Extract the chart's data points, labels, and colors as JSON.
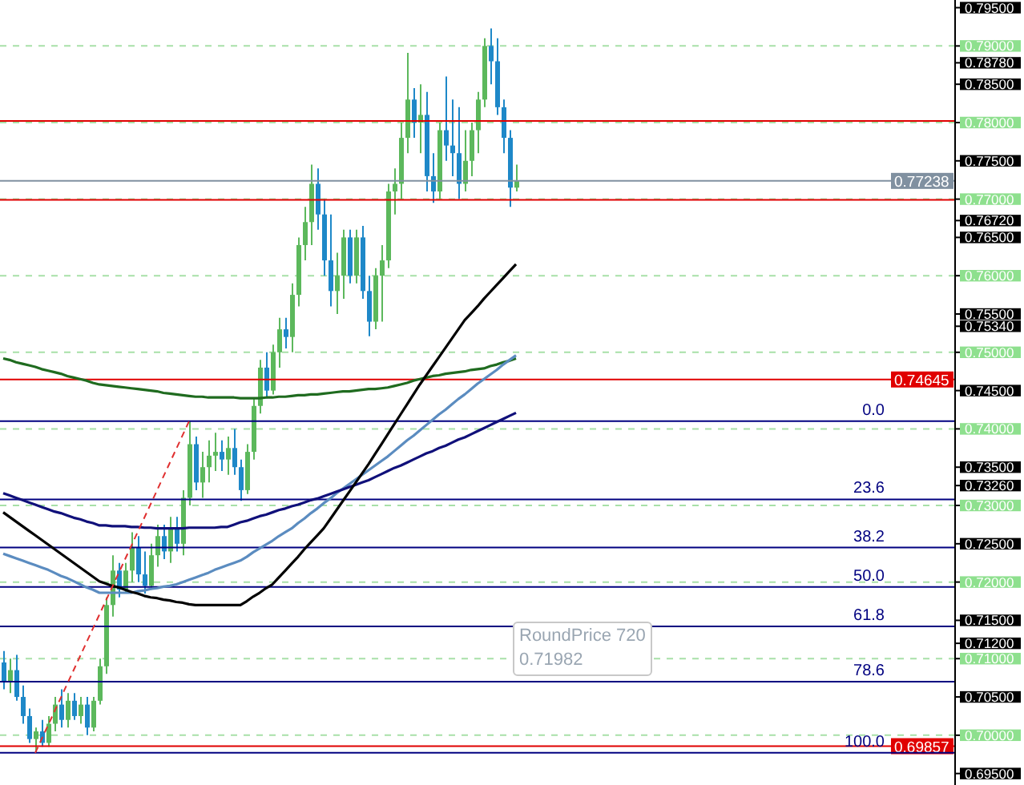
{
  "chart_data": {
    "type": "candlestick",
    "categories": [
      null,
      null,
      null,
      null,
      null,
      null,
      null,
      null,
      null,
      null,
      null,
      null,
      null,
      null,
      null,
      null,
      null,
      null,
      null,
      null,
      null,
      null,
      null,
      null,
      null,
      null,
      null,
      null,
      null,
      null,
      null,
      null,
      null,
      null,
      null,
      null,
      null,
      null,
      null,
      null,
      null,
      null,
      null,
      null,
      null,
      null,
      null,
      null,
      null,
      null,
      null,
      null,
      null,
      null,
      null,
      null,
      null,
      null,
      null,
      null,
      null,
      null,
      null,
      null,
      null,
      null,
      null,
      null,
      null,
      null,
      null,
      null,
      null,
      null,
      null,
      null,
      null,
      null,
      null,
      null,
      null
    ],
    "ohlc": [
      [
        0.7095,
        0.711,
        0.706,
        0.707
      ],
      [
        0.707,
        0.71,
        0.7055,
        0.7085
      ],
      [
        0.7085,
        0.7105,
        0.7045,
        0.705
      ],
      [
        0.705,
        0.7065,
        0.7015,
        0.7025
      ],
      [
        0.7025,
        0.7035,
        0.699,
        0.6995
      ],
      [
        0.6995,
        0.701,
        0.6977,
        0.7005
      ],
      [
        0.7005,
        0.702,
        0.6985,
        0.699
      ],
      [
        0.699,
        0.7025,
        0.6985,
        0.7015
      ],
      [
        0.7015,
        0.705,
        0.7005,
        0.704
      ],
      [
        0.704,
        0.706,
        0.701,
        0.702
      ],
      [
        0.702,
        0.7055,
        0.701,
        0.7045
      ],
      [
        0.7045,
        0.7055,
        0.702,
        0.7025
      ],
      [
        0.7025,
        0.705,
        0.7015,
        0.704
      ],
      [
        0.704,
        0.705,
        0.7,
        0.701
      ],
      [
        0.701,
        0.705,
        0.7005,
        0.7045
      ],
      [
        0.7045,
        0.71,
        0.704,
        0.709
      ],
      [
        0.709,
        0.718,
        0.708,
        0.717
      ],
      [
        0.717,
        0.7235,
        0.7155,
        0.7215
      ],
      [
        0.7215,
        0.7225,
        0.718,
        0.719
      ],
      [
        0.719,
        0.7225,
        0.7185,
        0.7215
      ],
      [
        0.7215,
        0.7265,
        0.72,
        0.7245
      ],
      [
        0.7245,
        0.726,
        0.72,
        0.721
      ],
      [
        0.721,
        0.724,
        0.7185,
        0.7195
      ],
      [
        0.7195,
        0.725,
        0.719,
        0.7235
      ],
      [
        0.7235,
        0.7275,
        0.722,
        0.726
      ],
      [
        0.726,
        0.7275,
        0.723,
        0.724
      ],
      [
        0.724,
        0.7285,
        0.7225,
        0.727
      ],
      [
        0.727,
        0.7285,
        0.724,
        0.725
      ],
      [
        0.725,
        0.732,
        0.7235,
        0.731
      ],
      [
        0.731,
        0.741,
        0.73,
        0.738
      ],
      [
        0.738,
        0.739,
        0.732,
        0.733
      ],
      [
        0.733,
        0.737,
        0.731,
        0.735
      ],
      [
        0.735,
        0.7385,
        0.733,
        0.7365
      ],
      [
        0.7365,
        0.7395,
        0.7345,
        0.737
      ],
      [
        0.737,
        0.7385,
        0.7345,
        0.736
      ],
      [
        0.736,
        0.739,
        0.734,
        0.7375
      ],
      [
        0.7375,
        0.74,
        0.734,
        0.735
      ],
      [
        0.735,
        0.736,
        0.7306,
        0.732
      ],
      [
        0.732,
        0.738,
        0.7315,
        0.737
      ],
      [
        0.737,
        0.744,
        0.736,
        0.743
      ],
      [
        0.743,
        0.749,
        0.742,
        0.748
      ],
      [
        0.748,
        0.75,
        0.744,
        0.745
      ],
      [
        0.745,
        0.751,
        0.7445,
        0.75
      ],
      [
        0.75,
        0.7545,
        0.748,
        0.753
      ],
      [
        0.753,
        0.7545,
        0.7505,
        0.752
      ],
      [
        0.752,
        0.759,
        0.75,
        0.7575
      ],
      [
        0.7575,
        0.765,
        0.756,
        0.764
      ],
      [
        0.764,
        0.769,
        0.762,
        0.767
      ],
      [
        0.767,
        0.7745,
        0.764,
        0.772
      ],
      [
        0.772,
        0.774,
        0.766,
        0.768
      ],
      [
        0.768,
        0.77,
        0.76,
        0.762
      ],
      [
        0.762,
        0.768,
        0.756,
        0.758
      ],
      [
        0.758,
        0.763,
        0.755,
        0.76
      ],
      [
        0.76,
        0.766,
        0.757,
        0.765
      ],
      [
        0.765,
        0.766,
        0.759,
        0.76
      ],
      [
        0.76,
        0.766,
        0.759,
        0.765
      ],
      [
        0.765,
        0.7665,
        0.757,
        0.758
      ],
      [
        0.758,
        0.76,
        0.7521,
        0.754
      ],
      [
        0.754,
        0.761,
        0.753,
        0.76
      ],
      [
        0.76,
        0.764,
        0.754,
        0.762
      ],
      [
        0.762,
        0.772,
        0.761,
        0.771
      ],
      [
        0.771,
        0.774,
        0.768,
        0.772
      ],
      [
        0.772,
        0.78,
        0.77,
        0.778
      ],
      [
        0.778,
        0.7891,
        0.776,
        0.783
      ],
      [
        0.783,
        0.7845,
        0.778,
        0.78
      ],
      [
        0.78,
        0.785,
        0.776,
        0.781
      ],
      [
        0.781,
        0.784,
        0.771,
        0.773
      ],
      [
        0.773,
        0.776,
        0.7695,
        0.771
      ],
      [
        0.771,
        0.78,
        0.77,
        0.779
      ],
      [
        0.779,
        0.786,
        0.775,
        0.777
      ],
      [
        0.777,
        0.783,
        0.773,
        0.776
      ],
      [
        0.776,
        0.782,
        0.77,
        0.772
      ],
      [
        0.772,
        0.779,
        0.771,
        0.775
      ],
      [
        0.775,
        0.78,
        0.773,
        0.779
      ],
      [
        0.779,
        0.784,
        0.776,
        0.783
      ],
      [
        0.783,
        0.791,
        0.782,
        0.79
      ],
      [
        0.79,
        0.7923,
        0.785,
        0.788
      ],
      [
        0.788,
        0.791,
        0.781,
        0.782
      ],
      [
        0.782,
        0.783,
        0.776,
        0.778
      ],
      [
        0.778,
        0.779,
        0.769,
        0.7715
      ],
      [
        0.7715,
        0.7745,
        0.771,
        0.7724
      ]
    ],
    "colors": [
      "#1e88c8",
      "#5cb85c",
      "#1e88c8",
      "#1e88c8",
      "#1e88c8",
      "#5cb85c",
      "#1e88c8",
      "#5cb85c",
      "#5cb85c",
      "#1e88c8",
      "#5cb85c",
      "#1e88c8",
      "#5cb85c",
      "#1e88c8",
      "#5cb85c",
      "#5cb85c",
      "#5cb85c",
      "#5cb85c",
      "#1e88c8",
      "#5cb85c",
      "#5cb85c",
      "#1e88c8",
      "#1e88c8",
      "#5cb85c",
      "#5cb85c",
      "#1e88c8",
      "#5cb85c",
      "#1e88c8",
      "#5cb85c",
      "#5cb85c",
      "#1e88c8",
      "#5cb85c",
      "#5cb85c",
      "#5cb85c",
      "#1e88c8",
      "#5cb85c",
      "#1e88c8",
      "#1e88c8",
      "#5cb85c",
      "#5cb85c",
      "#5cb85c",
      "#1e88c8",
      "#5cb85c",
      "#5cb85c",
      "#1e88c8",
      "#5cb85c",
      "#5cb85c",
      "#5cb85c",
      "#5cb85c",
      "#1e88c8",
      "#1e88c8",
      "#1e88c8",
      "#5cb85c",
      "#5cb85c",
      "#1e88c8",
      "#5cb85c",
      "#1e88c8",
      "#1e88c8",
      "#5cb85c",
      "#5cb85c",
      "#5cb85c",
      "#5cb85c",
      "#5cb85c",
      "#5cb85c",
      "#1e88c8",
      "#5cb85c",
      "#1e88c8",
      "#1e88c8",
      "#5cb85c",
      "#1e88c8",
      "#1e88c8",
      "#1e88c8",
      "#5cb85c",
      "#5cb85c",
      "#5cb85c",
      "#5cb85c",
      "#1e88c8",
      "#1e88c8",
      "#1e88c8",
      "#1e88c8",
      "#5cb85c"
    ],
    "series": [
      {
        "type": "line",
        "color": "#1f6b1f",
        "values": [
          0.7492,
          0.749,
          0.7487,
          0.7485,
          0.7483,
          0.7481,
          0.7478,
          0.7476,
          0.7474,
          0.7472,
          0.7469,
          0.7467,
          0.7465,
          0.7463,
          0.746,
          0.7458,
          0.7457,
          0.7456,
          0.7455,
          0.7454,
          0.7453,
          0.7452,
          0.7451,
          0.745,
          0.7449,
          0.7447,
          0.7446,
          0.7445,
          0.7444,
          0.7443,
          0.7442,
          0.7442,
          0.7441,
          0.7441,
          0.7441,
          0.7441,
          0.7441,
          0.744,
          0.744,
          0.744,
          0.744,
          0.7441,
          0.7441,
          0.7442,
          0.7442,
          0.7443,
          0.7444,
          0.7444,
          0.7445,
          0.7445,
          0.7446,
          0.7447,
          0.7448,
          0.7449,
          0.7449,
          0.745,
          0.7451,
          0.7452,
          0.7452,
          0.7453,
          0.7454,
          0.7456,
          0.7458,
          0.746,
          0.7463,
          0.7465,
          0.7467,
          0.7469,
          0.747,
          0.7472,
          0.7473,
          0.7474,
          0.7475,
          0.7477,
          0.7478,
          0.7479,
          0.7482,
          0.7484,
          0.7487,
          0.7489,
          0.7492
        ]
      },
      {
        "type": "line",
        "color": "#5b8cc0",
        "values": [
          0.7237,
          0.7234,
          0.7231,
          0.7228,
          0.7225,
          0.7222,
          0.7219,
          0.7216,
          0.7212,
          0.7208,
          0.7205,
          0.7201,
          0.7197,
          0.7193,
          0.719,
          0.7186,
          0.7186,
          0.7186,
          0.7186,
          0.7186,
          0.7186,
          0.7188,
          0.7189,
          0.7191,
          0.7192,
          0.7194,
          0.7195,
          0.7197,
          0.72,
          0.7203,
          0.7206,
          0.7209,
          0.7212,
          0.7216,
          0.7219,
          0.7222,
          0.7225,
          0.7228,
          0.7233,
          0.7239,
          0.7244,
          0.7249,
          0.7254,
          0.726,
          0.7265,
          0.727,
          0.7277,
          0.7283,
          0.729,
          0.7296,
          0.7303,
          0.7309,
          0.7316,
          0.7322,
          0.7328,
          0.7334,
          0.734,
          0.7346,
          0.7352,
          0.7358,
          0.7364,
          0.7371,
          0.7378,
          0.7385,
          0.7391,
          0.7398,
          0.7405,
          0.7412,
          0.7419,
          0.7425,
          0.7432,
          0.7439,
          0.7445,
          0.7452,
          0.7459,
          0.7465,
          0.7471,
          0.7477,
          0.7484,
          0.749,
          0.7496
        ]
      },
      {
        "type": "line",
        "color": "#10107a",
        "values": [
          0.7316,
          0.7313,
          0.731,
          0.7307,
          0.7304,
          0.7301,
          0.7298,
          0.7295,
          0.7292,
          0.729,
          0.7287,
          0.7284,
          0.7282,
          0.7279,
          0.7277,
          0.7274,
          0.7274,
          0.7273,
          0.7273,
          0.7273,
          0.7272,
          0.7272,
          0.7271,
          0.7271,
          0.727,
          0.727,
          0.727,
          0.727,
          0.727,
          0.7271,
          0.7271,
          0.7271,
          0.7271,
          0.7271,
          0.7272,
          0.7272,
          0.7275,
          0.7278,
          0.728,
          0.7283,
          0.7286,
          0.7288,
          0.7291,
          0.7294,
          0.7296,
          0.7299,
          0.7301,
          0.7304,
          0.7307,
          0.7309,
          0.7312,
          0.7315,
          0.7318,
          0.7321,
          0.7324,
          0.7327,
          0.733,
          0.7333,
          0.7337,
          0.7341,
          0.7345,
          0.7349,
          0.7352,
          0.7356,
          0.736,
          0.7364,
          0.7368,
          0.7371,
          0.7375,
          0.7378,
          0.7382,
          0.7386,
          0.7389,
          0.7393,
          0.7397,
          0.7401,
          0.7405,
          0.7409,
          0.7413,
          0.7417,
          0.7421
        ]
      },
      {
        "type": "line",
        "color": "#000000",
        "values": [
          0.7291,
          0.7285,
          0.7279,
          0.7273,
          0.7267,
          0.7261,
          0.7255,
          0.7249,
          0.7243,
          0.7237,
          0.7231,
          0.7225,
          0.7219,
          0.7213,
          0.7207,
          0.7201,
          0.7198,
          0.7195,
          0.7193,
          0.719,
          0.7187,
          0.7185,
          0.7182,
          0.718,
          0.7179,
          0.7177,
          0.7176,
          0.7174,
          0.7173,
          0.7171,
          0.717,
          0.717,
          0.717,
          0.717,
          0.717,
          0.717,
          0.717,
          0.717,
          0.7175,
          0.7181,
          0.7186,
          0.7192,
          0.7197,
          0.7206,
          0.7215,
          0.7224,
          0.7233,
          0.7243,
          0.7252,
          0.7261,
          0.727,
          0.7282,
          0.7294,
          0.7306,
          0.7318,
          0.733,
          0.7342,
          0.7354,
          0.7367,
          0.738,
          0.7393,
          0.7406,
          0.7419,
          0.7432,
          0.7445,
          0.7458,
          0.747,
          0.7482,
          0.7494,
          0.7506,
          0.7518,
          0.753,
          0.7542,
          0.7551,
          0.756,
          0.757,
          0.7579,
          0.7588,
          0.7597,
          0.7606,
          0.7615
        ]
      },
      {
        "type": "line",
        "color": "#e03030",
        "line_style": "dashed",
        "values": [
          null,
          null,
          null,
          null,
          null,
          0.6977,
          null,
          null,
          null,
          null,
          null,
          null,
          null,
          null,
          null,
          null,
          null,
          null,
          null,
          null,
          null,
          null,
          null,
          null,
          null,
          null,
          null,
          null,
          null,
          0.741,
          null,
          null,
          null,
          null,
          null,
          null,
          null,
          null,
          null,
          null,
          null,
          null,
          null,
          null,
          null,
          null,
          null,
          null,
          null,
          null,
          null,
          null,
          null,
          null,
          null,
          null,
          null,
          null,
          null,
          null,
          null,
          null,
          null,
          null,
          null,
          null,
          null,
          null,
          null,
          null,
          null,
          null,
          null,
          null,
          null,
          null,
          null,
          null,
          null,
          null,
          null
        ]
      }
    ],
    "ylim": [
      0.6935,
      0.796
    ],
    "yticks": [
      {
        "value": 0.7,
        "label": "0.70000"
      },
      {
        "value": 0.71,
        "label": "0.71000"
      },
      {
        "value": 0.72,
        "label": "0.72000"
      },
      {
        "value": 0.73,
        "label": "0.73000"
      },
      {
        "value": 0.74,
        "label": "0.74000"
      },
      {
        "value": 0.75,
        "label": "0.75000"
      },
      {
        "value": 0.76,
        "label": "0.76000"
      },
      {
        "value": 0.77,
        "label": "0.77000"
      },
      {
        "value": 0.78,
        "label": "0.78000"
      },
      {
        "value": 0.79,
        "label": "0.79000"
      }
    ],
    "y2lim": [
      0.6935,
      0.796
    ],
    "y2ticks": [
      {
        "value": 0.695,
        "label": "0.69500"
      },
      {
        "value": 0.705,
        "label": "0.70500"
      },
      {
        "value": 0.712,
        "label": "0.71200"
      },
      {
        "value": 0.715,
        "label": "0.71500"
      },
      {
        "value": 0.725,
        "label": "0.72500"
      },
      {
        "value": 0.7326,
        "label": "0.73260"
      },
      {
        "value": 0.735,
        "label": "0.73500"
      },
      {
        "value": 0.745,
        "label": "0.74500"
      },
      {
        "value": 0.7534,
        "label": "0.75340"
      },
      {
        "value": 0.755,
        "label": "0.75500"
      },
      {
        "value": 0.765,
        "label": "0.76500"
      },
      {
        "value": 0.7672,
        "label": "0.76720"
      },
      {
        "value": 0.775,
        "label": "0.77500"
      },
      {
        "value": 0.785,
        "label": "0.78500"
      },
      {
        "value": 0.7878,
        "label": "0.78780"
      },
      {
        "value": 0.795,
        "label": "0.79500"
      }
    ],
    "grid": "y",
    "ref_lines": [
      {
        "axis": "y",
        "value": 0.7802,
        "color": "#e00000"
      },
      {
        "axis": "y",
        "value": 0.7699,
        "color": "#e00000"
      },
      {
        "axis": "y",
        "value": 0.77238,
        "label": "0.77238",
        "color": "#8090a0"
      },
      {
        "axis": "y",
        "value": 0.74645,
        "label": "0.74645",
        "color": "#e00000"
      },
      {
        "axis": "y",
        "value": 0.69857,
        "label": "0.69857",
        "color": "#e00000"
      },
      {
        "axis": "y",
        "value": 0.741,
        "color": "#000080"
      },
      {
        "axis": "y",
        "value": 0.7308,
        "color": "#000080"
      },
      {
        "axis": "y",
        "value": 0.7245,
        "color": "#000080"
      },
      {
        "axis": "y",
        "value": 0.71935,
        "color": "#000080"
      },
      {
        "axis": "y",
        "value": 0.7142,
        "color": "#000080"
      },
      {
        "axis": "y",
        "value": 0.707,
        "color": "#000080"
      },
      {
        "axis": "y",
        "value": 0.6977,
        "color": "#000080"
      }
    ],
    "annotations": [
      "RoundPrice 720",
      "0.71982",
      {
        "text": "0.0",
        "y": 0.741
      },
      {
        "text": "23.6",
        "y": 0.7308
      },
      {
        "text": "38.2",
        "y": 0.7245
      },
      {
        "text": "50.0",
        "y": 0.71935
      },
      {
        "text": "61.8",
        "y": 0.7142
      },
      {
        "text": "78.6",
        "y": 0.707
      },
      {
        "text": "100.0",
        "y": 0.6977
      }
    ]
  }
}
